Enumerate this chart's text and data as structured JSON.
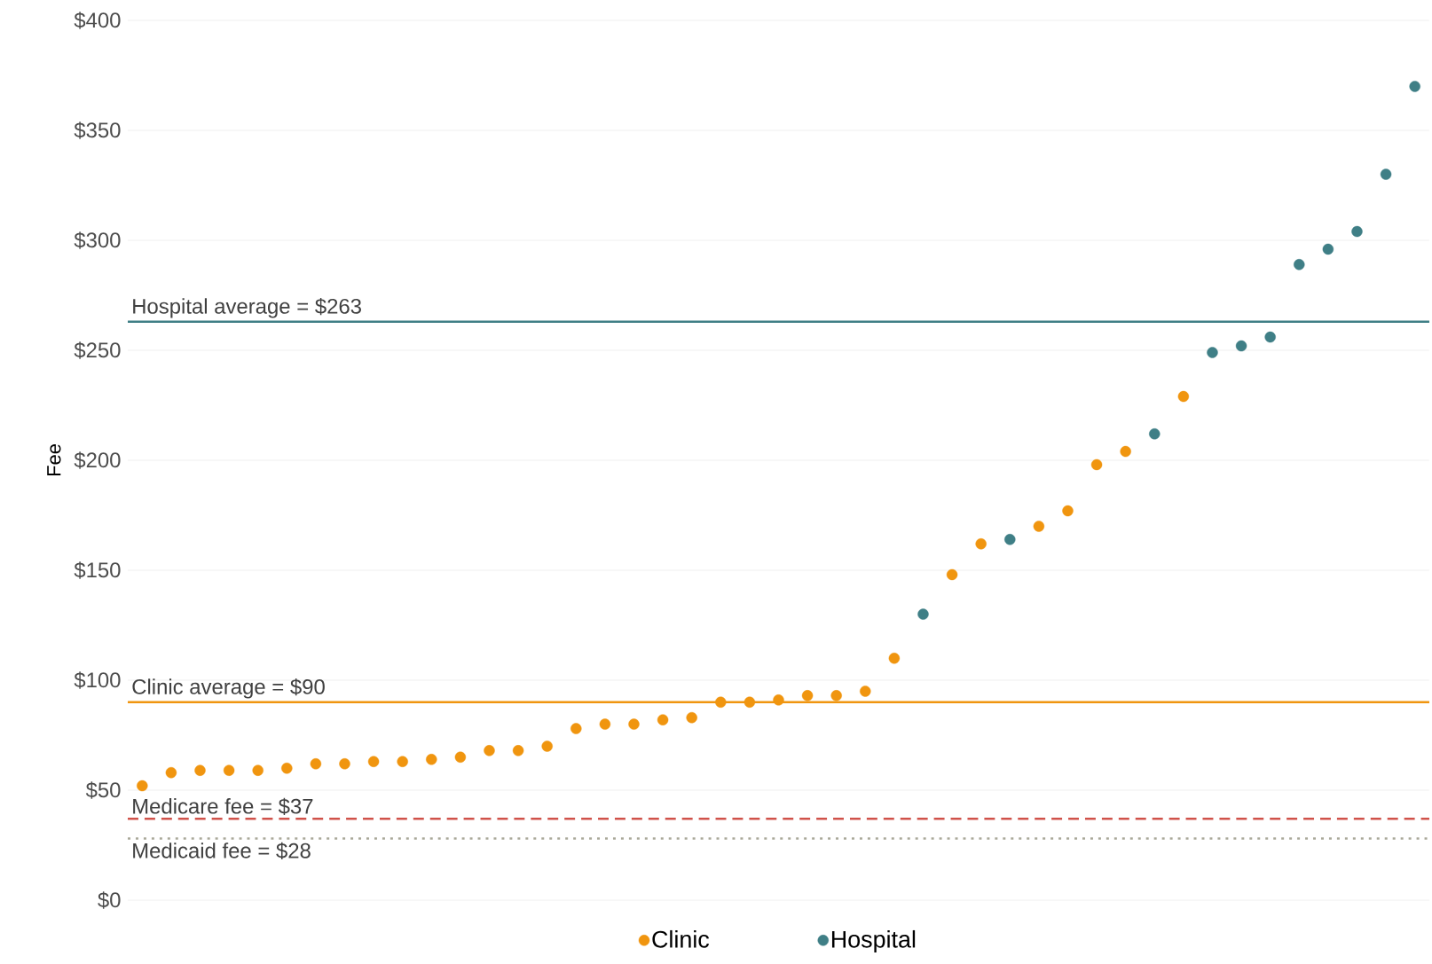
{
  "chart_data": {
    "type": "scatter",
    "ylabel": "Fee",
    "categories": [
      null,
      null,
      null,
      null,
      null,
      null,
      null,
      null,
      null,
      null,
      null,
      null,
      null,
      null,
      null,
      null,
      null,
      null,
      null,
      null,
      null,
      null,
      null,
      null,
      null,
      null,
      null,
      null,
      null,
      null,
      null,
      null,
      null,
      null,
      null,
      null,
      null,
      null,
      null,
      null,
      null,
      null,
      null,
      null,
      null
    ],
    "series": [
      {
        "name": "Clinic",
        "color": "#f0950f",
        "values": [
          52,
          58,
          59,
          59,
          59,
          60,
          62,
          62,
          63,
          63,
          64,
          65,
          68,
          68,
          70,
          78,
          80,
          80,
          82,
          83,
          90,
          90,
          91,
          93,
          93,
          95,
          110,
          null,
          148,
          162,
          null,
          170,
          177,
          198,
          204,
          null,
          229,
          null,
          null,
          null,
          null,
          null,
          null,
          null,
          null
        ]
      },
      {
        "name": "Hospital",
        "color": "#3f7f86",
        "values": [
          null,
          null,
          null,
          null,
          null,
          null,
          null,
          null,
          null,
          null,
          null,
          null,
          null,
          null,
          null,
          null,
          null,
          null,
          null,
          null,
          null,
          null,
          null,
          null,
          null,
          null,
          null,
          130,
          null,
          null,
          164,
          null,
          null,
          null,
          null,
          212,
          null,
          249,
          252,
          256,
          289,
          296,
          304,
          330,
          370
        ]
      }
    ],
    "ylim": [
      0,
      400
    ],
    "yticks": [
      {
        "value": 0,
        "label": "$0"
      },
      {
        "value": 50,
        "label": "$50"
      },
      {
        "value": 100,
        "label": "$100"
      },
      {
        "value": 150,
        "label": "$150"
      },
      {
        "value": 200,
        "label": "$200"
      },
      {
        "value": 250,
        "label": "$250"
      },
      {
        "value": 300,
        "label": "$300"
      },
      {
        "value": 350,
        "label": "$350"
      },
      {
        "value": 400,
        "label": "$400"
      }
    ],
    "tick_labels": "y",
    "ref_lines": [
      {
        "axis": "y",
        "value": 263,
        "label": "Hospital average = $263",
        "color": "#3f7f86",
        "line_style": "solid"
      },
      {
        "axis": "y",
        "value": 90,
        "label": "Clinic average = $90",
        "color": "#f0950f",
        "line_style": "solid"
      },
      {
        "axis": "y",
        "value": 37,
        "label": "Medicare fee = $37",
        "color": "#d0524a",
        "line_style": "dashed"
      },
      {
        "axis": "y",
        "value": 28,
        "label": "Medicaid fee = $28",
        "color": "#aaa99a",
        "line_style": "dotted"
      }
    ],
    "grid": "y",
    "legend": "bottom"
  }
}
